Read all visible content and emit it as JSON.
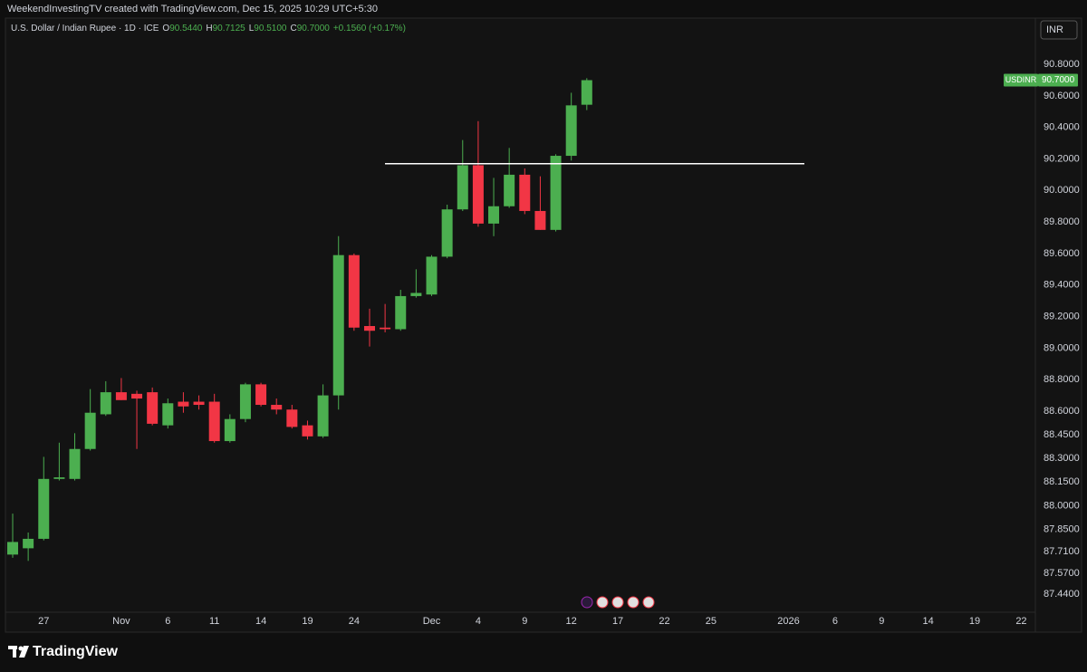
{
  "header": "WeekendInvestingTV created with TradingView.com, Dec 15, 2025 10:29 UTC+5:30",
  "chart_data": {
    "type": "candlestick",
    "legend": {
      "symbol": "U.S. Dollar / Indian Rupee · 1D · ICE",
      "o_label": "O",
      "open": "90.5440",
      "h_label": "H",
      "high": "90.7125",
      "l_label": "L",
      "low": "90.5100",
      "c_label": "C",
      "close": "90.7000",
      "change": "+0.1560 (+0.17%)"
    },
    "currency": "INR",
    "categories": [
      null,
      null,
      "27",
      null,
      null,
      null,
      null,
      "Nov",
      null,
      null,
      "6",
      null,
      null,
      "11",
      null,
      null,
      "14",
      null,
      null,
      "19",
      null,
      null,
      "24",
      null,
      null,
      null,
      null,
      "Dec",
      null,
      null,
      "4",
      null,
      null,
      "9",
      null,
      null,
      "12",
      null,
      null,
      "17",
      null,
      null,
      "22",
      null,
      null,
      "25",
      null,
      null,
      null,
      null,
      "2026",
      null,
      null,
      "6",
      null,
      null,
      "9",
      null,
      null,
      "14",
      null,
      null,
      "19",
      null,
      null,
      "22"
    ],
    "open": [
      87.69,
      87.73,
      87.79,
      88.17,
      88.17,
      88.36,
      88.58,
      88.72,
      88.71,
      88.72,
      88.51,
      88.66,
      88.66,
      88.66,
      88.41,
      88.55,
      88.77,
      88.64,
      88.61,
      88.51,
      88.44,
      88.7,
      89.59,
      89.14,
      89.13,
      89.12,
      89.33,
      89.34,
      89.58,
      89.88,
      90.16,
      89.79,
      89.9,
      90.1,
      89.87,
      89.75,
      90.22,
      90.544,
      null,
      null,
      null,
      null,
      null,
      null,
      null,
      null,
      null,
      null,
      null,
      null,
      null,
      null,
      null,
      null,
      null,
      null,
      null,
      null,
      null,
      null,
      null,
      null,
      null,
      null,
      null,
      null
    ],
    "high": [
      87.95,
      87.83,
      88.31,
      88.4,
      88.46,
      88.74,
      88.79,
      88.81,
      88.73,
      88.75,
      88.68,
      88.72,
      88.7,
      88.71,
      88.58,
      88.78,
      88.78,
      88.68,
      88.64,
      88.54,
      88.77,
      89.71,
      89.6,
      89.25,
      89.28,
      89.37,
      89.5,
      89.59,
      89.91,
      90.32,
      90.44,
      90.08,
      90.27,
      90.14,
      90.09,
      90.23,
      90.62,
      90.7125,
      null,
      null,
      null,
      null,
      null,
      null,
      null,
      null,
      null,
      null,
      null,
      null,
      null,
      null,
      null,
      null,
      null,
      null,
      null,
      null,
      null,
      null,
      null,
      null,
      null,
      null,
      null,
      null
    ],
    "low": [
      87.67,
      87.65,
      87.78,
      88.16,
      88.16,
      88.35,
      88.57,
      88.67,
      88.36,
      88.51,
      88.49,
      88.59,
      88.61,
      88.4,
      88.4,
      88.53,
      88.63,
      88.58,
      88.49,
      88.42,
      88.43,
      88.61,
      89.11,
      89.01,
      89.1,
      89.11,
      89.32,
      89.33,
      89.57,
      89.87,
      89.77,
      89.71,
      89.89,
      89.85,
      89.75,
      89.74,
      90.19,
      90.51,
      null,
      null,
      null,
      null,
      null,
      null,
      null,
      null,
      null,
      null,
      null,
      null,
      null,
      null,
      null,
      null,
      null,
      null,
      null,
      null,
      null,
      null,
      null,
      null,
      null,
      null,
      null,
      null
    ],
    "close": [
      87.77,
      87.79,
      88.17,
      88.18,
      88.36,
      88.59,
      88.72,
      88.67,
      88.68,
      88.52,
      88.65,
      88.63,
      88.64,
      88.41,
      88.55,
      88.77,
      88.64,
      88.61,
      88.5,
      88.44,
      88.7,
      89.59,
      89.13,
      89.11,
      89.12,
      89.33,
      89.35,
      89.58,
      89.88,
      90.16,
      89.79,
      89.9,
      90.1,
      89.87,
      89.75,
      90.22,
      90.54,
      90.7,
      null,
      null,
      null,
      null,
      null,
      null,
      null,
      null,
      null,
      null,
      null,
      null,
      null,
      null,
      null,
      null,
      null,
      null,
      null,
      null,
      null,
      null,
      null,
      null,
      null,
      null,
      null,
      null
    ],
    "up_color": "#4caf50",
    "down_color": "#f23645",
    "ylim": [
      87.33,
      90.95
    ],
    "yticks": [
      {
        "value": 90.8,
        "label": "90.8000"
      },
      {
        "value": 90.6,
        "label": "90.6000"
      },
      {
        "value": 90.4,
        "label": "90.4000"
      },
      {
        "value": 90.2,
        "label": "90.2000"
      },
      {
        "value": 90.0,
        "label": "90.0000"
      },
      {
        "value": 89.8,
        "label": "89.8000"
      },
      {
        "value": 89.6,
        "label": "89.6000"
      },
      {
        "value": 89.4,
        "label": "89.4000"
      },
      {
        "value": 89.2,
        "label": "89.2000"
      },
      {
        "value": 89.0,
        "label": "89.0000"
      },
      {
        "value": 88.8,
        "label": "88.8000"
      },
      {
        "value": 88.6,
        "label": "88.6000"
      },
      {
        "value": 88.45,
        "label": "88.4500"
      },
      {
        "value": 88.3,
        "label": "88.3000"
      },
      {
        "value": 88.15,
        "label": "88.1500"
      },
      {
        "value": 88.0,
        "label": "88.0000"
      },
      {
        "value": 87.85,
        "label": "87.8500"
      },
      {
        "value": 87.71,
        "label": "87.7100"
      },
      {
        "value": 87.57,
        "label": "87.5700"
      },
      {
        "value": 87.44,
        "label": "87.4400"
      }
    ],
    "grid": false,
    "level_line": 90.17,
    "price_tag": {
      "symbol": "USDINR",
      "value": 90.7,
      "label": "90.7000"
    }
  },
  "footer": "TradingView"
}
